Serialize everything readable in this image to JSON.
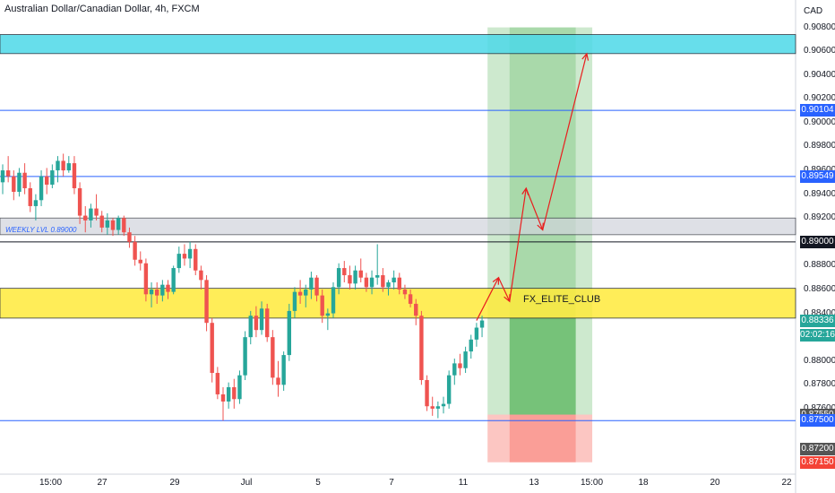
{
  "title": "Australian Dollar/Canadian Dollar, 4h, FXCM",
  "currency_label": "CAD",
  "zone_label": "FX_ELITE_CLUB",
  "weekly_label": "WEEKLY LVL 0.89000",
  "colors": {
    "bull": "#26a69a",
    "bear": "#ef5350",
    "line": "#2962ff",
    "cyan_zone": "#4dd9e8",
    "yellow_zone": "#ffeb3b",
    "grey_zone": "#d1d4dc",
    "target": "#4caf50",
    "stop": "#f44336",
    "arrow": "#e91e1e"
  },
  "price_axis": [
    {
      "value": "0.90800",
      "price": 0.908
    },
    {
      "value": "0.90600",
      "price": 0.906
    },
    {
      "value": "0.90400",
      "price": 0.904
    },
    {
      "value": "0.90200",
      "price": 0.902
    },
    {
      "value": "0.90000",
      "price": 0.9
    },
    {
      "value": "0.89800",
      "price": 0.898
    },
    {
      "value": "0.89600",
      "price": 0.896
    },
    {
      "value": "0.89400",
      "price": 0.894
    },
    {
      "value": "0.89200",
      "price": 0.892
    },
    {
      "value": "0.88800",
      "price": 0.888
    },
    {
      "value": "0.88600",
      "price": 0.886
    },
    {
      "value": "0.88400",
      "price": 0.884
    },
    {
      "value": "0.88000",
      "price": 0.88
    },
    {
      "value": "0.87800",
      "price": 0.878
    },
    {
      "value": "0.87600",
      "price": 0.876
    }
  ],
  "price_tags": [
    {
      "text": "0.90104",
      "price": 0.90104,
      "bg": "#2962ff"
    },
    {
      "text": "0.89549",
      "price": 0.89549,
      "bg": "#2962ff"
    },
    {
      "text": "0.89000",
      "price": 0.89,
      "bg": "#131722"
    },
    {
      "text": "0.88336",
      "price": 0.88336,
      "bg": "#26a69a"
    },
    {
      "text": "02:02:16",
      "price": 0.88216,
      "bg": "#26a69a"
    },
    {
      "text": "0.87550",
      "price": 0.8755,
      "bg": "#555555"
    },
    {
      "text": "0.87500",
      "price": 0.875,
      "bg": "#2962ff"
    },
    {
      "text": "0.87200",
      "price": 0.8726,
      "bg": "#555555"
    },
    {
      "text": "0.87150",
      "price": 0.8715,
      "bg": "#f44336"
    }
  ],
  "time_axis": [
    "15:00",
    "27",
    "29",
    "Jul",
    "5",
    "7",
    "11",
    "13",
    "15:00",
    "18",
    "20",
    "22"
  ],
  "chart_data": {
    "type": "candlestick",
    "title": "Australian Dollar/Canadian Dollar, 4h, FXCM",
    "ylim": [
      0.8705,
      0.9103
    ],
    "horizontal_levels": [
      0.90104,
      0.89549,
      0.89,
      0.875
    ],
    "zones": [
      {
        "name": "cyan",
        "from": 0.9058,
        "to": 0.9074
      },
      {
        "name": "grey",
        "from": 0.8906,
        "to": 0.892
      },
      {
        "name": "yellow",
        "from": 0.8836,
        "to": 0.8861
      }
    ],
    "candles": [
      [
        0.895,
        0.8965,
        0.894,
        0.896
      ],
      [
        0.896,
        0.8972,
        0.895,
        0.8955
      ],
      [
        0.8955,
        0.896,
        0.8935,
        0.8942
      ],
      [
        0.8942,
        0.8962,
        0.8938,
        0.8958
      ],
      [
        0.8958,
        0.8966,
        0.894,
        0.8945
      ],
      [
        0.8945,
        0.895,
        0.8925,
        0.893
      ],
      [
        0.893,
        0.894,
        0.8918,
        0.8935
      ],
      [
        0.8935,
        0.896,
        0.893,
        0.8955
      ],
      [
        0.8955,
        0.8962,
        0.894,
        0.8948
      ],
      [
        0.8948,
        0.8965,
        0.8945,
        0.896
      ],
      [
        0.896,
        0.8972,
        0.895,
        0.8968
      ],
      [
        0.8968,
        0.8974,
        0.8955,
        0.896
      ],
      [
        0.896,
        0.8972,
        0.8958,
        0.8966
      ],
      [
        0.8966,
        0.8972,
        0.894,
        0.8945
      ],
      [
        0.8945,
        0.895,
        0.8915,
        0.8922
      ],
      [
        0.8922,
        0.893,
        0.8908,
        0.8918
      ],
      [
        0.8918,
        0.8932,
        0.8912,
        0.8928
      ],
      [
        0.8928,
        0.894,
        0.8918,
        0.8922
      ],
      [
        0.8922,
        0.8926,
        0.8908,
        0.8912
      ],
      [
        0.8912,
        0.8924,
        0.8906,
        0.8918
      ],
      [
        0.8918,
        0.892,
        0.8905,
        0.891
      ],
      [
        0.891,
        0.8922,
        0.8906,
        0.892
      ],
      [
        0.892,
        0.8922,
        0.8905,
        0.8908
      ],
      [
        0.8908,
        0.8912,
        0.8895,
        0.89
      ],
      [
        0.89,
        0.8905,
        0.888,
        0.8885
      ],
      [
        0.8885,
        0.8892,
        0.8876,
        0.8882
      ],
      [
        0.8882,
        0.8886,
        0.885,
        0.8856
      ],
      [
        0.8856,
        0.8866,
        0.8845,
        0.886
      ],
      [
        0.886,
        0.8866,
        0.8848,
        0.8855
      ],
      [
        0.8855,
        0.8868,
        0.885,
        0.8864
      ],
      [
        0.8864,
        0.8868,
        0.8852,
        0.8858
      ],
      [
        0.8858,
        0.888,
        0.8856,
        0.8878
      ],
      [
        0.8878,
        0.8896,
        0.8874,
        0.889
      ],
      [
        0.889,
        0.8898,
        0.888,
        0.8886
      ],
      [
        0.8886,
        0.89,
        0.8878,
        0.8894
      ],
      [
        0.8894,
        0.8898,
        0.8872,
        0.8876
      ],
      [
        0.8876,
        0.888,
        0.886,
        0.8868
      ],
      [
        0.8868,
        0.8872,
        0.8825,
        0.8832
      ],
      [
        0.8832,
        0.8836,
        0.8782,
        0.879
      ],
      [
        0.879,
        0.8795,
        0.8768,
        0.8772
      ],
      [
        0.8772,
        0.8778,
        0.875,
        0.8766
      ],
      [
        0.8766,
        0.8782,
        0.876,
        0.8778
      ],
      [
        0.8778,
        0.8785,
        0.876,
        0.8768
      ],
      [
        0.8768,
        0.8792,
        0.8764,
        0.8788
      ],
      [
        0.8788,
        0.8825,
        0.8784,
        0.882
      ],
      [
        0.882,
        0.8842,
        0.8814,
        0.8838
      ],
      [
        0.8838,
        0.8846,
        0.882,
        0.8826
      ],
      [
        0.8826,
        0.885,
        0.8822,
        0.8844
      ],
      [
        0.8844,
        0.8848,
        0.8816,
        0.882
      ],
      [
        0.882,
        0.8826,
        0.878,
        0.8786
      ],
      [
        0.8786,
        0.88,
        0.877,
        0.878
      ],
      [
        0.878,
        0.8808,
        0.8775,
        0.8805
      ],
      [
        0.8805,
        0.8848,
        0.88,
        0.8842
      ],
      [
        0.8842,
        0.8862,
        0.8836,
        0.8858
      ],
      [
        0.8858,
        0.8868,
        0.8848,
        0.8855
      ],
      [
        0.8855,
        0.8864,
        0.8845,
        0.886
      ],
      [
        0.886,
        0.8875,
        0.8852,
        0.887
      ],
      [
        0.887,
        0.8872,
        0.885,
        0.8855
      ],
      [
        0.8855,
        0.886,
        0.8832,
        0.8838
      ],
      [
        0.8838,
        0.8844,
        0.8826,
        0.884
      ],
      [
        0.884,
        0.8866,
        0.8836,
        0.8862
      ],
      [
        0.8862,
        0.8882,
        0.8856,
        0.8878
      ],
      [
        0.8878,
        0.8884,
        0.8866,
        0.8872
      ],
      [
        0.8872,
        0.888,
        0.886,
        0.8865
      ],
      [
        0.8865,
        0.888,
        0.886,
        0.8876
      ],
      [
        0.8876,
        0.8886,
        0.8866,
        0.887
      ],
      [
        0.887,
        0.8874,
        0.8858,
        0.8862
      ],
      [
        0.8862,
        0.8876,
        0.8856,
        0.887
      ],
      [
        0.887,
        0.8898,
        0.8864,
        0.8872
      ],
      [
        0.8872,
        0.8878,
        0.8858,
        0.8862
      ],
      [
        0.8862,
        0.8868,
        0.8855,
        0.8866
      ],
      [
        0.8866,
        0.8876,
        0.886,
        0.887
      ],
      [
        0.887,
        0.8874,
        0.8856,
        0.886
      ],
      [
        0.886,
        0.8864,
        0.8852,
        0.8856
      ],
      [
        0.8856,
        0.886,
        0.8845,
        0.8848
      ],
      [
        0.8848,
        0.8852,
        0.883,
        0.8838
      ],
      [
        0.8838,
        0.8842,
        0.878,
        0.8784
      ],
      [
        0.8784,
        0.8788,
        0.8758,
        0.8762
      ],
      [
        0.8762,
        0.877,
        0.8754,
        0.876
      ],
      [
        0.876,
        0.8766,
        0.8752,
        0.8762
      ],
      [
        0.8762,
        0.877,
        0.8756,
        0.8764
      ],
      [
        0.8764,
        0.8792,
        0.876,
        0.8788
      ],
      [
        0.8788,
        0.8802,
        0.878,
        0.8798
      ],
      [
        0.8798,
        0.8806,
        0.8788,
        0.8794
      ],
      [
        0.8794,
        0.8812,
        0.879,
        0.8808
      ],
      [
        0.8808,
        0.8822,
        0.8802,
        0.8818
      ],
      [
        0.8818,
        0.8832,
        0.8812,
        0.8828
      ],
      [
        0.8828,
        0.8838,
        0.882,
        0.8834
      ]
    ],
    "trade_box": {
      "entry": 0.8755,
      "target": 0.908,
      "stop": 0.8715
    },
    "projection_path": [
      {
        "candle": 86,
        "price": 0.8834
      },
      {
        "candle": 90,
        "price": 0.887
      },
      {
        "candle": 92,
        "price": 0.885
      },
      {
        "candle": 95,
        "price": 0.8945
      },
      {
        "candle": 98,
        "price": 0.891
      },
      {
        "candle": 106,
        "price": 0.9058
      }
    ]
  }
}
